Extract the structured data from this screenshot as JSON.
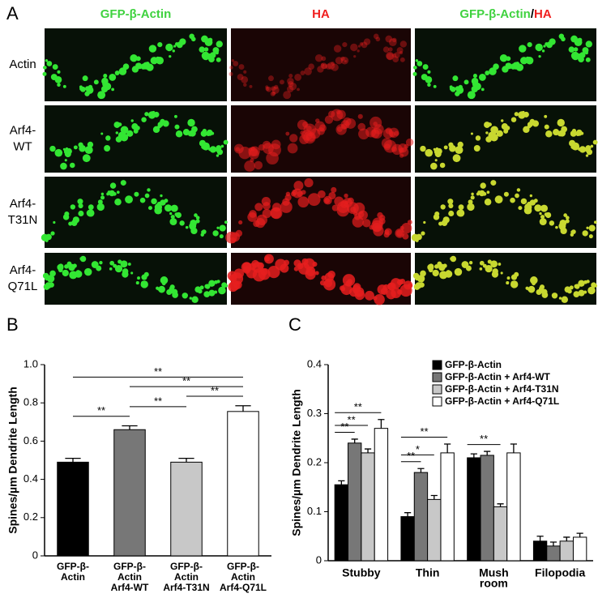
{
  "panel_labels": [
    "A",
    "B",
    "C"
  ],
  "panel_a": {
    "columns": [
      [
        "GFP-β-Actin"
      ],
      [
        "HA"
      ],
      [
        "GFP-β-Actin",
        "/",
        "HA"
      ]
    ],
    "rows": [
      [
        "Actin"
      ],
      [
        "Arf4-",
        "WT"
      ],
      [
        "Arf4-",
        "T31N"
      ],
      [
        "Arf4-",
        "Q71L"
      ]
    ]
  },
  "chart_data": [
    {
      "type": "bar",
      "ylabel": "Spines/µm Dendrite Length",
      "categories": [
        [
          "GFP-β-",
          "Actin"
        ],
        [
          "GFP-β-",
          "Actin",
          "Arf4-WT"
        ],
        [
          "GFP-β-",
          "Actin",
          "Arf4-T31N"
        ],
        [
          "GFP-β-",
          "Actin",
          "Arf4-Q71L"
        ]
      ],
      "values": [
        0.49,
        0.66,
        0.49,
        0.755
      ],
      "errors": [
        0.02,
        0.02,
        0.02,
        0.03
      ],
      "colors": [
        "#000000",
        "#777777",
        "#c8c8c8",
        "#ffffff"
      ],
      "ylim": [
        0,
        1
      ],
      "yticks": [
        0,
        0.2,
        0.4,
        0.6,
        0.8,
        {
          "value": 1,
          "label": "1.0"
        }
      ],
      "significance": [
        {
          "from": 0,
          "to": 1,
          "label": "**"
        },
        {
          "from": 1,
          "to": 2,
          "label": "**"
        },
        {
          "from": 2,
          "to": 3,
          "label": "**"
        },
        {
          "from": 1,
          "to": 3,
          "label": "**"
        },
        {
          "from": 0,
          "to": 3,
          "label": "**"
        }
      ]
    },
    {
      "type": "bar",
      "ylabel": "Spines/µm Dendrite Length",
      "categories": [
        [
          "Stubby"
        ],
        [
          "Thin"
        ],
        [
          "Mush",
          "room"
        ],
        [
          "Filopodia"
        ]
      ],
      "series": [
        {
          "name": "GFP-β-Actin",
          "color": "#000000",
          "values": [
            0.155,
            0.09,
            0.21,
            0.04
          ],
          "errors": [
            0.008,
            0.008,
            0.008,
            0.01
          ]
        },
        {
          "name": "GFP-β-Actin + Arf4-WT",
          "color": "#777777",
          "values": [
            0.24,
            0.18,
            0.215,
            0.03
          ],
          "errors": [
            0.008,
            0.008,
            0.008,
            0.008
          ]
        },
        {
          "name": "GFP-β-Actin + Arf4-T31N",
          "color": "#c8c8c8",
          "values": [
            0.22,
            0.125,
            0.11,
            0.04
          ],
          "errors": [
            0.008,
            0.008,
            0.006,
            0.008
          ]
        },
        {
          "name": "GFP-β-Actin + Arf4-Q71L",
          "color": "#ffffff",
          "values": [
            0.27,
            0.22,
            0.22,
            0.048
          ],
          "errors": [
            0.018,
            0.018,
            0.018,
            0.008
          ]
        }
      ],
      "ylim": [
        0,
        0.4
      ],
      "yticks": [
        0,
        0.1,
        0.2,
        0.3,
        0.4
      ],
      "legend": "top-right",
      "significance": [
        {
          "group": 0,
          "from": 0,
          "to": 1,
          "label": "**"
        },
        {
          "group": 0,
          "from": 0,
          "to": 2,
          "label": "**"
        },
        {
          "group": 0,
          "from": 0,
          "to": 3,
          "label": "**"
        },
        {
          "group": 1,
          "from": 0,
          "to": 1,
          "label": "**"
        },
        {
          "group": 1,
          "from": 0,
          "to": 2,
          "label": "*"
        },
        {
          "group": 1,
          "from": 0,
          "to": 3,
          "label": "**"
        },
        {
          "group": 2,
          "from": 0,
          "to": 2,
          "label": "**"
        }
      ]
    }
  ]
}
